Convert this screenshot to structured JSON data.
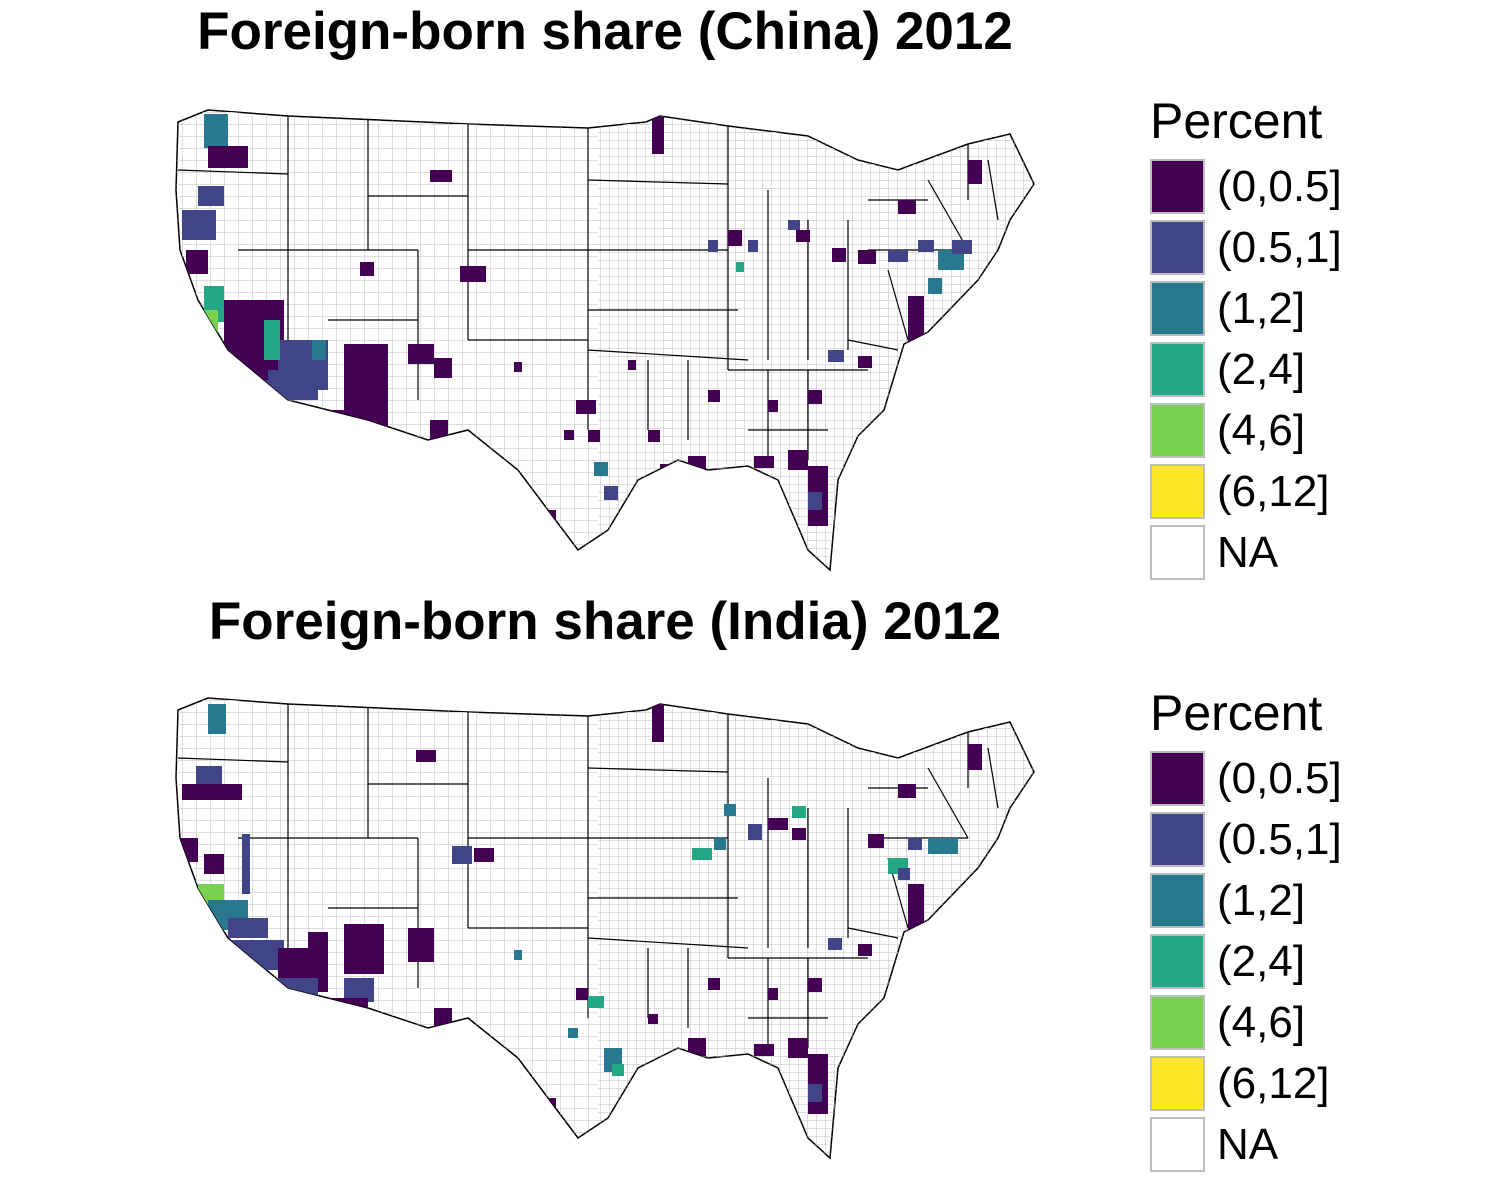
{
  "panels": [
    {
      "title": "Foreign-born share (China) 2012",
      "legend": {
        "title": "Percent",
        "items": [
          {
            "label": "(0,0.5]",
            "color": "#440154"
          },
          {
            "label": "(0.5,1]",
            "color": "#414487"
          },
          {
            "label": "(1,2]",
            "color": "#2A788E"
          },
          {
            "label": "(2,4]",
            "color": "#22A884"
          },
          {
            "label": "(4,6]",
            "color": "#7AD151"
          },
          {
            "label": "(6,12]",
            "color": "#FDE725"
          },
          {
            "label": "NA",
            "color": "#FFFFFF"
          }
        ]
      }
    },
    {
      "title": "Foreign-born share (India) 2012",
      "legend": {
        "title": "Percent",
        "items": [
          {
            "label": "(0,0.5]",
            "color": "#440154"
          },
          {
            "label": "(0.5,1]",
            "color": "#414487"
          },
          {
            "label": "(1,2]",
            "color": "#2A788E"
          },
          {
            "label": "(2,4]",
            "color": "#22A884"
          },
          {
            "label": "(4,6]",
            "color": "#7AD151"
          },
          {
            "label": "(6,12]",
            "color": "#FDE725"
          },
          {
            "label": "NA",
            "color": "#FFFFFF"
          }
        ]
      }
    }
  ]
}
